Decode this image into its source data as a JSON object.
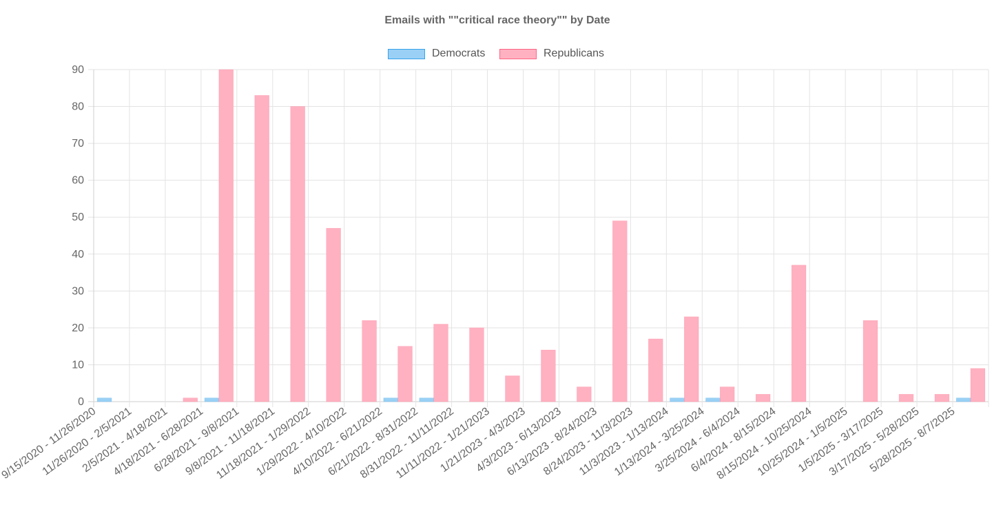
{
  "chart_data": {
    "type": "bar",
    "title": "Emails with \"\"critical race theory\"\" by Date",
    "categories": [
      "9/15/2020 - 11/26/2020",
      "11/26/2020 - 2/5/2021",
      "2/5/2021 - 4/18/2021",
      "4/18/2021 - 6/28/2021",
      "6/28/2021 - 9/8/2021",
      "9/8/2021 - 11/18/2021",
      "11/18/2021 - 1/29/2022",
      "1/29/2022 - 4/10/2022",
      "4/10/2022 - 6/21/2022",
      "6/21/2022 - 8/31/2022",
      "8/31/2022 - 11/11/2022",
      "11/11/2022 - 1/21/2023",
      "1/21/2023 - 4/3/2023",
      "4/3/2023 - 6/13/2023",
      "6/13/2023 - 8/24/2023",
      "8/24/2023 - 11/3/2023",
      "11/3/2023 - 1/13/2024",
      "1/13/2024 - 3/25/2024",
      "3/25/2024 - 6/4/2024",
      "6/4/2024 - 8/15/2024",
      "8/15/2024 - 10/25/2024",
      "10/25/2024 - 1/5/2025",
      "1/5/2025 - 3/17/2025",
      "3/17/2025 - 5/28/2025",
      "5/28/2025 - 8/7/2025"
    ],
    "series": [
      {
        "name": "Democrats",
        "color": "#9ad0f5",
        "border": "#36a2eb",
        "values": [
          1,
          0,
          0,
          1,
          0,
          0,
          0,
          0,
          1,
          1,
          0,
          0,
          0,
          0,
          0,
          0,
          1,
          1,
          0,
          0,
          0,
          0,
          0,
          0,
          1
        ]
      },
      {
        "name": "Republicans",
        "color": "#ffb1c1",
        "border": "#ff6384",
        "values": [
          0,
          0,
          1,
          90,
          83,
          80,
          47,
          22,
          15,
          21,
          20,
          7,
          14,
          4,
          49,
          17,
          23,
          4,
          2,
          37,
          0,
          22,
          2,
          2,
          9
        ]
      }
    ],
    "ylim": [
      0,
      90
    ],
    "yticks": [
      0,
      10,
      20,
      30,
      40,
      50,
      60,
      70,
      80,
      90
    ],
    "grid": true,
    "legend_position": "top-center"
  }
}
